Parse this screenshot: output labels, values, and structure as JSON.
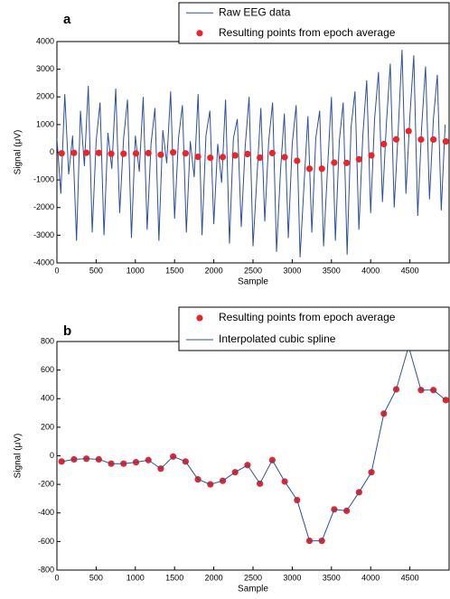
{
  "chart_data": [
    {
      "type": "combo",
      "title": "a",
      "x_label": "Sample",
      "y_label": "Signal (μV)",
      "xlim": [
        0,
        5000
      ],
      "ylim": [
        -4000,
        4000
      ],
      "xticks": [
        0,
        500,
        1000,
        1500,
        2000,
        2500,
        3000,
        3500,
        4000,
        4500
      ],
      "yticks": [
        -4000,
        -3000,
        -2000,
        -1000,
        0,
        1000,
        2000,
        3000,
        4000
      ],
      "grid": false,
      "legend": "top-right",
      "series": [
        {
          "name": "Raw EEG data",
          "type": "line",
          "color": "#2e4f9e",
          "x": [
            0,
            50,
            100,
            150,
            200,
            250,
            300,
            350,
            400,
            450,
            500,
            550,
            600,
            650,
            700,
            750,
            800,
            850,
            900,
            950,
            1000,
            1050,
            1100,
            1150,
            1200,
            1250,
            1300,
            1350,
            1400,
            1450,
            1500,
            1550,
            1600,
            1650,
            1700,
            1750,
            1800,
            1850,
            1900,
            1950,
            2000,
            2050,
            2100,
            2150,
            2200,
            2250,
            2300,
            2350,
            2400,
            2450,
            2500,
            2550,
            2600,
            2650,
            2700,
            2750,
            2800,
            2850,
            2900,
            2950,
            3000,
            3050,
            3100,
            3150,
            3200,
            3250,
            3300,
            3350,
            3400,
            3450,
            3500,
            3550,
            3600,
            3650,
            3700,
            3750,
            3800,
            3850,
            3900,
            3950,
            4000,
            4050,
            4100,
            4150,
            4200,
            4250,
            4300,
            4350,
            4400,
            4450,
            4500,
            4550,
            4600,
            4650,
            4700,
            4750,
            4800,
            4850,
            4900,
            4950
          ],
          "values": [
            500,
            -1500,
            2100,
            -800,
            600,
            -3200,
            1500,
            -500,
            2400,
            -2900,
            400,
            1800,
            -3000,
            700,
            -600,
            2300,
            -2200,
            500,
            1900,
            -3100,
            600,
            -700,
            2000,
            -2800,
            300,
            1600,
            -3200,
            800,
            -400,
            2200,
            -2400,
            500,
            1700,
            -2900,
            400,
            -900,
            2100,
            -3000,
            600,
            1500,
            -2600,
            300,
            -1100,
            1900,
            -3300,
            500,
            1200,
            -2700,
            200,
            2000,
            -3400,
            -900,
            1600,
            -2500,
            400,
            1800,
            -3600,
            -700,
            1400,
            -3100,
            300,
            1700,
            -3800,
            -1200,
            1300,
            -2900,
            500,
            1500,
            -3400,
            -600,
            2000,
            -3200,
            400,
            1800,
            -3700,
            900,
            2200,
            -2800,
            600,
            2600,
            -2200,
            1200,
            2900,
            -1800,
            1000,
            3200,
            -2000,
            700,
            3700,
            -1500,
            1300,
            3500,
            -2300,
            900,
            3100,
            -1700,
            1200,
            2800,
            -2100,
            1000
          ]
        },
        {
          "name": "Resulting points from epoch average",
          "type": "scatter",
          "color": "#e8262a",
          "x": [
            60,
            218,
            376,
            534,
            692,
            850,
            1008,
            1166,
            1324,
            1482,
            1640,
            1798,
            1956,
            2114,
            2272,
            2430,
            2588,
            2746,
            2904,
            3062,
            3220,
            3378,
            3536,
            3694,
            3852,
            4010,
            4168,
            4326,
            4484,
            4642,
            4800,
            4958
          ],
          "values": [
            -40,
            -25,
            -20,
            -25,
            -55,
            -55,
            -45,
            -30,
            -90,
            -5,
            -40,
            -165,
            -200,
            -175,
            -115,
            -65,
            -195,
            -30,
            -180,
            -310,
            -595,
            -595,
            -375,
            -385,
            -255,
            -115,
            295,
            465,
            765,
            460,
            460,
            390
          ]
        }
      ]
    },
    {
      "type": "combo",
      "title": "b",
      "x_label": "Sample",
      "y_label": "Signal (μV)",
      "xlim": [
        0,
        5000
      ],
      "ylim": [
        -800,
        800
      ],
      "xticks": [
        0,
        500,
        1000,
        1500,
        2000,
        2500,
        3000,
        3500,
        4000,
        4500
      ],
      "yticks": [
        -800,
        -600,
        -400,
        -200,
        0,
        200,
        400,
        600,
        800
      ],
      "grid": false,
      "legend": "top-right",
      "series": [
        {
          "name": "Resulting points from epoch average",
          "type": "scatter",
          "color": "#e8262a",
          "x": [
            60,
            218,
            376,
            534,
            692,
            850,
            1008,
            1166,
            1324,
            1482,
            1640,
            1798,
            1956,
            2114,
            2272,
            2430,
            2588,
            2746,
            2904,
            3062,
            3220,
            3378,
            3536,
            3694,
            3852,
            4010,
            4168,
            4326,
            4484,
            4642,
            4800,
            4958
          ],
          "values": [
            -40,
            -25,
            -20,
            -25,
            -55,
            -55,
            -45,
            -30,
            -90,
            -5,
            -40,
            -165,
            -200,
            -175,
            -115,
            -65,
            -195,
            -30,
            -180,
            -310,
            -595,
            -595,
            -375,
            -385,
            -255,
            -115,
            295,
            465,
            765,
            460,
            460,
            390
          ]
        },
        {
          "name": "Interpolated cubic spline",
          "type": "line",
          "color": "#2e4f9e",
          "x": [
            60,
            218,
            376,
            534,
            692,
            850,
            1008,
            1166,
            1324,
            1482,
            1640,
            1798,
            1956,
            2114,
            2272,
            2430,
            2588,
            2746,
            2904,
            3062,
            3220,
            3378,
            3536,
            3694,
            3852,
            4010,
            4168,
            4326,
            4484,
            4642,
            4800,
            4958
          ],
          "values": [
            -40,
            -25,
            -20,
            -25,
            -55,
            -55,
            -45,
            -30,
            -90,
            -5,
            -40,
            -165,
            -200,
            -175,
            -115,
            -65,
            -195,
            -30,
            -180,
            -310,
            -595,
            -595,
            -375,
            -385,
            -255,
            -115,
            295,
            465,
            765,
            460,
            460,
            390
          ]
        }
      ]
    }
  ]
}
